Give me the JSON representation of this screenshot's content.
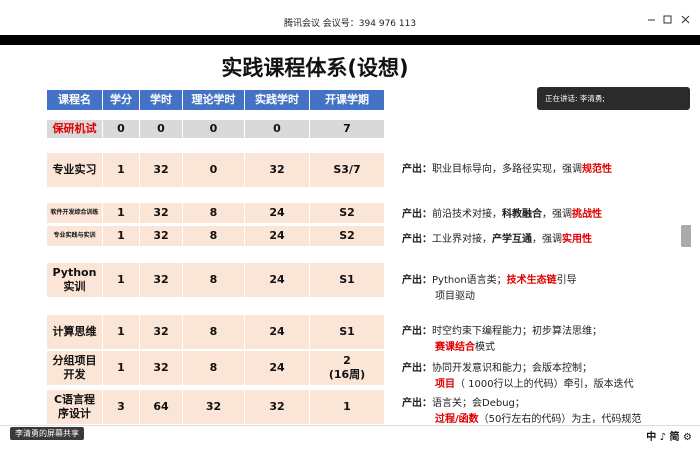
{
  "window": {
    "title": "腾讯会议 会议号：394 976 113"
  },
  "slide": {
    "title": "实践课程体系(设想)",
    "header": [
      "课程名",
      "学分",
      "学时",
      "理论学时",
      "实践学时",
      "开课学期"
    ],
    "rows": [
      [
        "保研机试",
        "0",
        "0",
        "0",
        "0",
        "7"
      ],
      [
        "专业实习",
        "1",
        "32",
        "0",
        "32",
        "S3/7"
      ],
      [
        "软件开发综合训练",
        "1",
        "32",
        "8",
        "24",
        "S2"
      ],
      [
        "专业实践与实训",
        "1",
        "32",
        "8",
        "24",
        "S2"
      ],
      [
        "Python实训",
        "1",
        "32",
        "8",
        "24",
        "S1"
      ],
      [
        "计算思维",
        "1",
        "32",
        "8",
        "24",
        "S1"
      ],
      [
        "分组项目开发",
        "1",
        "32",
        "8",
        "24",
        "2\n(16周)"
      ],
      [
        "C语言程序设计",
        "3",
        "64",
        "32",
        "32",
        "1"
      ]
    ],
    "outputs": [
      {
        "label": "产出：",
        "lines": [
          [
            "职业目标导向，多路径实现，强调",
            "规范性"
          ]
        ]
      },
      {
        "label": "产出：",
        "lines": [
          [
            "前沿技术对接，",
            "科教融合",
            "，强调",
            "挑战性"
          ]
        ]
      },
      {
        "label": "产出：",
        "lines": [
          [
            "工业界对接，",
            "产学互通",
            "，强调",
            "实用性"
          ]
        ]
      },
      {
        "label": "产出：",
        "lines": [
          [
            "Python语言类；",
            "技术生态链",
            "引导"
          ],
          [
            "项目驱动"
          ]
        ]
      },
      {
        "label": "产出：",
        "lines": [
          [
            "时空约束下编程能力；初步算法思维；"
          ],
          [
            "赛课结合",
            "模式"
          ]
        ]
      },
      {
        "label": "产出：",
        "lines": [
          [
            "协同开发意识和能力；会版本控制；"
          ],
          [
            "项目",
            "（ 1000行以上的代码）牵引，版本迭代"
          ]
        ]
      },
      {
        "label": "产出：",
        "lines": [
          [
            "语言关；会Debug；"
          ],
          [
            "过程/函数",
            "（50行左右的代码）为主，代码规范"
          ]
        ]
      }
    ]
  },
  "speaker": "正在讲话: 李清勇;",
  "status": {
    "share": "李清勇的屏幕共享",
    "tools": "中 ♪ 简 ⚙"
  }
}
